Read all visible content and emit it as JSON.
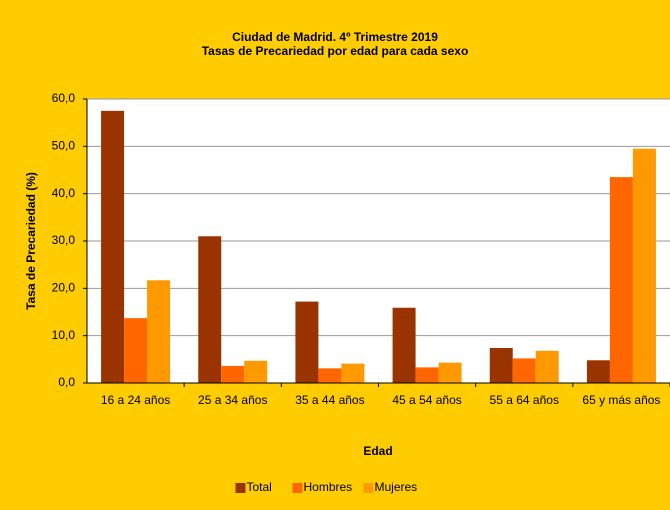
{
  "chart_data": {
    "type": "bar",
    "title": "Ciudad de Madrid. 4º Trimestre 2019",
    "subtitle": "Tasas de Precariedad por edad para cada sexo",
    "x_label": "Edad",
    "y_label": "Tasa de Precariedad (%)",
    "categories": [
      "16 a 24 años",
      "25 a 34 años",
      "35 a 44 años",
      "45 a 54 años",
      "55 a 64 años",
      "65 y más años"
    ],
    "series": [
      {
        "name": "Total",
        "color": "#993300",
        "values": [
          57.5,
          31.0,
          17.2,
          15.9,
          7.4,
          4.8
        ]
      },
      {
        "name": "Hombres",
        "color": "#FF6600",
        "values": [
          13.7,
          3.6,
          3.1,
          3.3,
          5.2,
          43.5
        ]
      },
      {
        "name": "Mujeres",
        "color": "#FF9900",
        "values": [
          21.7,
          4.7,
          4.1,
          4.3,
          6.8,
          49.5
        ]
      }
    ],
    "ylim": [
      0,
      60
    ],
    "yticks": [
      {
        "value": 0,
        "label": "0,0"
      },
      {
        "value": 10,
        "label": "10,0"
      },
      {
        "value": 20,
        "label": "20,0"
      },
      {
        "value": 30,
        "label": "30,0"
      },
      {
        "value": 40,
        "label": "40,0"
      },
      {
        "value": 50,
        "label": "50,0"
      },
      {
        "value": 60,
        "label": "60,0"
      }
    ],
    "grid": true,
    "legend": "bottom"
  }
}
